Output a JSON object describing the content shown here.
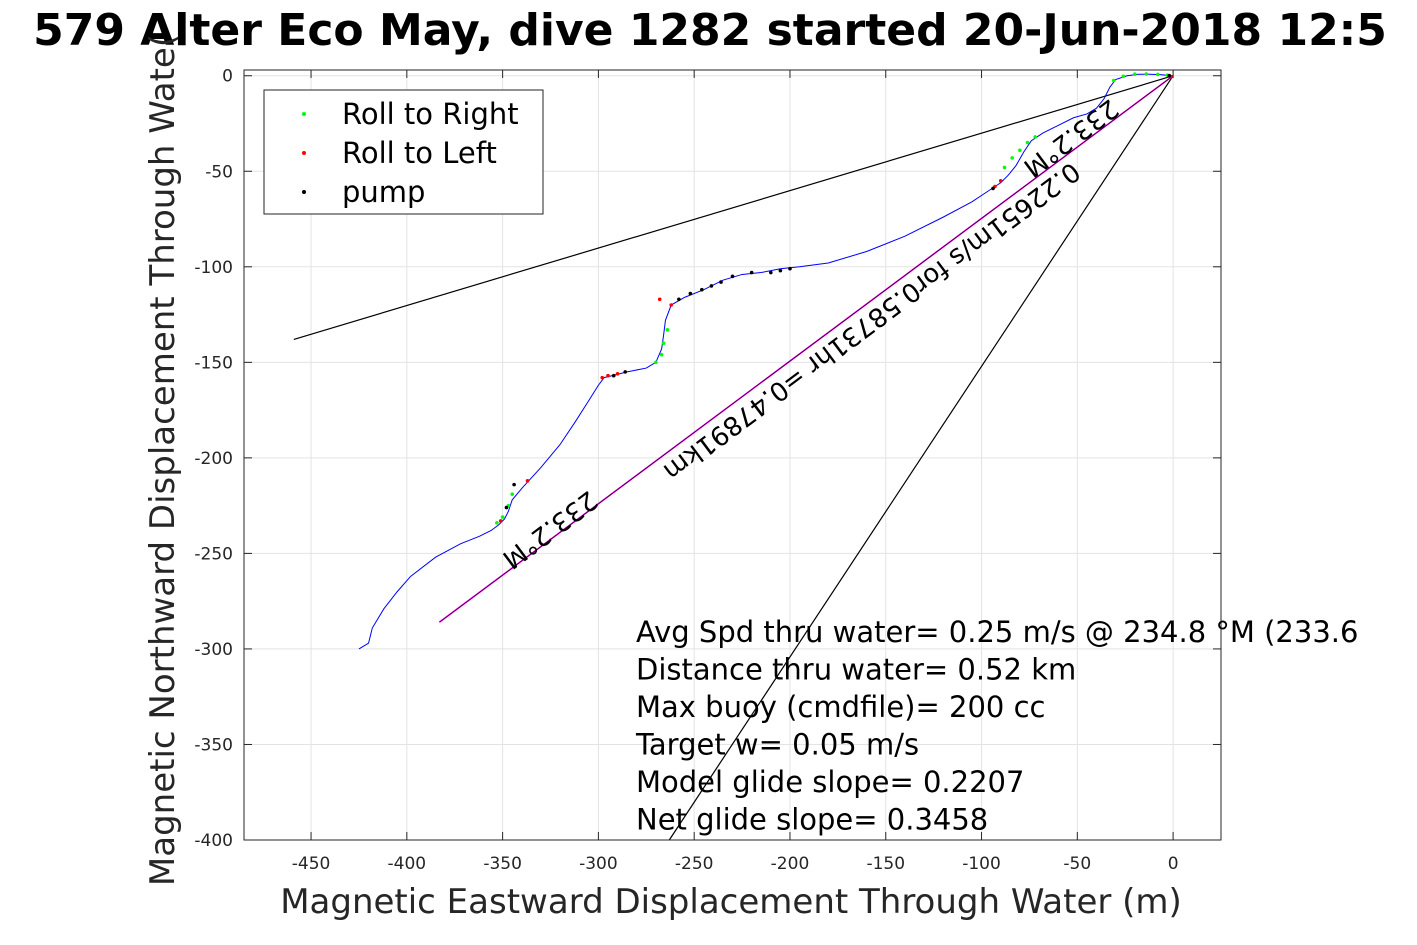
{
  "chart_data": {
    "type": "line",
    "title": "579 Alter Eco May, dive 1282 started 20-Jun-2018 12:5",
    "xlabel": "Magnetic Eastward Displacement Through Water (m)",
    "ylabel": "Magnetic Northward Displacement Through Wate(",
    "xlim": [
      -485,
      25
    ],
    "ylim": [
      -400,
      3
    ],
    "xticks": [
      -450,
      -400,
      -350,
      -300,
      -250,
      -200,
      -150,
      -100,
      -50,
      0
    ],
    "yticks": [
      0,
      -50,
      -100,
      -150,
      -200,
      -250,
      -300,
      -350,
      -400
    ],
    "grid": true,
    "colors": {
      "track": "#0000ff",
      "roll_right": "#00ff00",
      "roll_left": "#ff0000",
      "pump": "#000000",
      "vector": "#ff00ff",
      "guide": "#000000"
    },
    "legend": {
      "position": "top-left",
      "entries": [
        {
          "label": "Roll to Right",
          "color": "#00ff00"
        },
        {
          "label": "Roll to Left",
          "color": "#ff0000"
        },
        {
          "label": "pump",
          "color": "#000000"
        }
      ]
    },
    "series": [
      {
        "name": "track",
        "color": "#0000ff",
        "x": [
          0,
          -6,
          -12,
          -18,
          -24,
          -30,
          -33,
          -36,
          -40,
          -45,
          -52,
          -60,
          -68,
          -74,
          -78,
          -82,
          -86,
          -90,
          -96,
          -105,
          -120,
          -140,
          -160,
          -180,
          -195,
          -205,
          -215,
          -225,
          -235,
          -245,
          -255,
          -262,
          -265,
          -266,
          -267,
          -270,
          -275,
          -285,
          -293,
          -297,
          -300,
          -305,
          -312,
          -320,
          -330,
          -340,
          -345,
          -347,
          -349,
          -352,
          -356,
          -362,
          -372,
          -385,
          -398,
          -405,
          -412,
          -418,
          -420,
          -425
        ],
        "y": [
          0,
          0.5,
          0.8,
          0.8,
          0,
          -2,
          -6,
          -12,
          -17,
          -20,
          -22,
          -26,
          -30,
          -34,
          -40,
          -47,
          -52,
          -56,
          -60,
          -66,
          -74,
          -84,
          -92,
          -98,
          -100,
          -101,
          -103,
          -104,
          -107,
          -112,
          -116,
          -120,
          -128,
          -136,
          -143,
          -150,
          -153,
          -155,
          -157,
          -158,
          -162,
          -170,
          -181,
          -193,
          -205,
          -216,
          -222,
          -228,
          -232,
          -235,
          -238,
          -241,
          -245,
          -252,
          -262,
          -270,
          -279,
          -289,
          -297,
          -300
        ]
      },
      {
        "name": "vector",
        "color": "#ff00ff",
        "x": [
          0,
          -383
        ],
        "y": [
          0,
          -286
        ]
      },
      {
        "name": "guide-left",
        "color": "#000000",
        "x": [
          0,
          -459
        ],
        "y": [
          0,
          -138
        ]
      },
      {
        "name": "guide-right",
        "color": "#000000",
        "x": [
          0,
          -263
        ],
        "y": [
          0,
          -400
        ]
      }
    ],
    "markers": {
      "roll_right": [
        [
          -3,
          0.3
        ],
        [
          -8,
          0.7
        ],
        [
          -14,
          0.9
        ],
        [
          -20,
          0.8
        ],
        [
          -26,
          -0.3
        ],
        [
          -31,
          -2.5
        ],
        [
          -72,
          -32
        ],
        [
          -76,
          -35
        ],
        [
          -80,
          -39
        ],
        [
          -84,
          -43
        ],
        [
          -88,
          -48
        ],
        [
          -264,
          -133
        ],
        [
          -266,
          -140
        ],
        [
          -267,
          -146
        ],
        [
          -270,
          -150
        ],
        [
          -345,
          -219
        ],
        [
          -347,
          -225
        ],
        [
          -350,
          -231
        ],
        [
          -353,
          -234
        ]
      ],
      "roll_left": [
        [
          -1,
          -0.5
        ],
        [
          -90,
          -55
        ],
        [
          -93,
          -58
        ],
        [
          -262,
          -120
        ],
        [
          -268,
          -117
        ],
        [
          -290,
          -156
        ],
        [
          -295,
          -157
        ],
        [
          -298,
          -158
        ],
        [
          -337,
          -212
        ],
        [
          -351,
          -233
        ]
      ],
      "pump": [
        [
          -2,
          0
        ],
        [
          -94,
          -59
        ],
        [
          -220,
          -103
        ],
        [
          -230,
          -105
        ],
        [
          -236,
          -108
        ],
        [
          -241,
          -110
        ],
        [
          -246,
          -112
        ],
        [
          -252,
          -114
        ],
        [
          -258,
          -117
        ],
        [
          -200,
          -101
        ],
        [
          -205,
          -102
        ],
        [
          -210,
          -103
        ],
        [
          -286,
          -155
        ],
        [
          -292,
          -157
        ],
        [
          -344,
          -214
        ],
        [
          -348,
          -226
        ]
      ]
    },
    "annotations": [
      {
        "text": "233.2°M",
        "x": -56,
        "y": -29,
        "rotation": 143.2
      },
      {
        "text": "233.2°M",
        "x": -328,
        "y": -234,
        "rotation": 143.2
      },
      {
        "text": "0.22651m/s for0.58731hr =0.47891km",
        "x": -160,
        "y": -125,
        "rotation": 143.2
      }
    ],
    "stats": [
      "Avg Spd thru water=  0.25 m/s @ 234.8 °M (233.6",
      "Distance thru water=  0.52 km",
      "Max buoy (cmdfile)= 200 cc",
      "Target w= 0.05 m/s",
      "Model glide slope= 0.2207",
      "Net glide slope= 0.3458"
    ]
  }
}
